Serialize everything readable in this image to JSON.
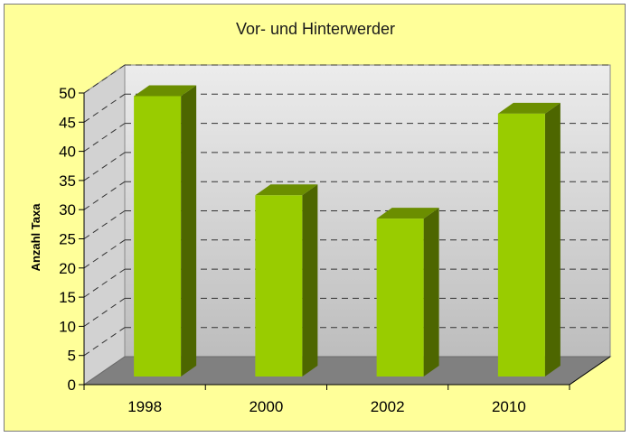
{
  "chart_data": {
    "type": "bar",
    "title": "Vor- und Hinterwerder",
    "xlabel": "",
    "ylabel": "Anzahl Taxa",
    "categories": [
      "1998",
      "2000",
      "2002",
      "2010"
    ],
    "values": [
      49,
      32,
      28,
      46
    ],
    "ylim": [
      0,
      50
    ],
    "ytick_step": 5,
    "grid": true,
    "legend": "none",
    "style": "3d",
    "colors": {
      "background": "#ffff99",
      "bar_front": "#99cc00",
      "bar_top": "#6b8e00",
      "bar_side": "#4d6600",
      "wall": "#dcdcdc",
      "floor": "#808080"
    }
  }
}
